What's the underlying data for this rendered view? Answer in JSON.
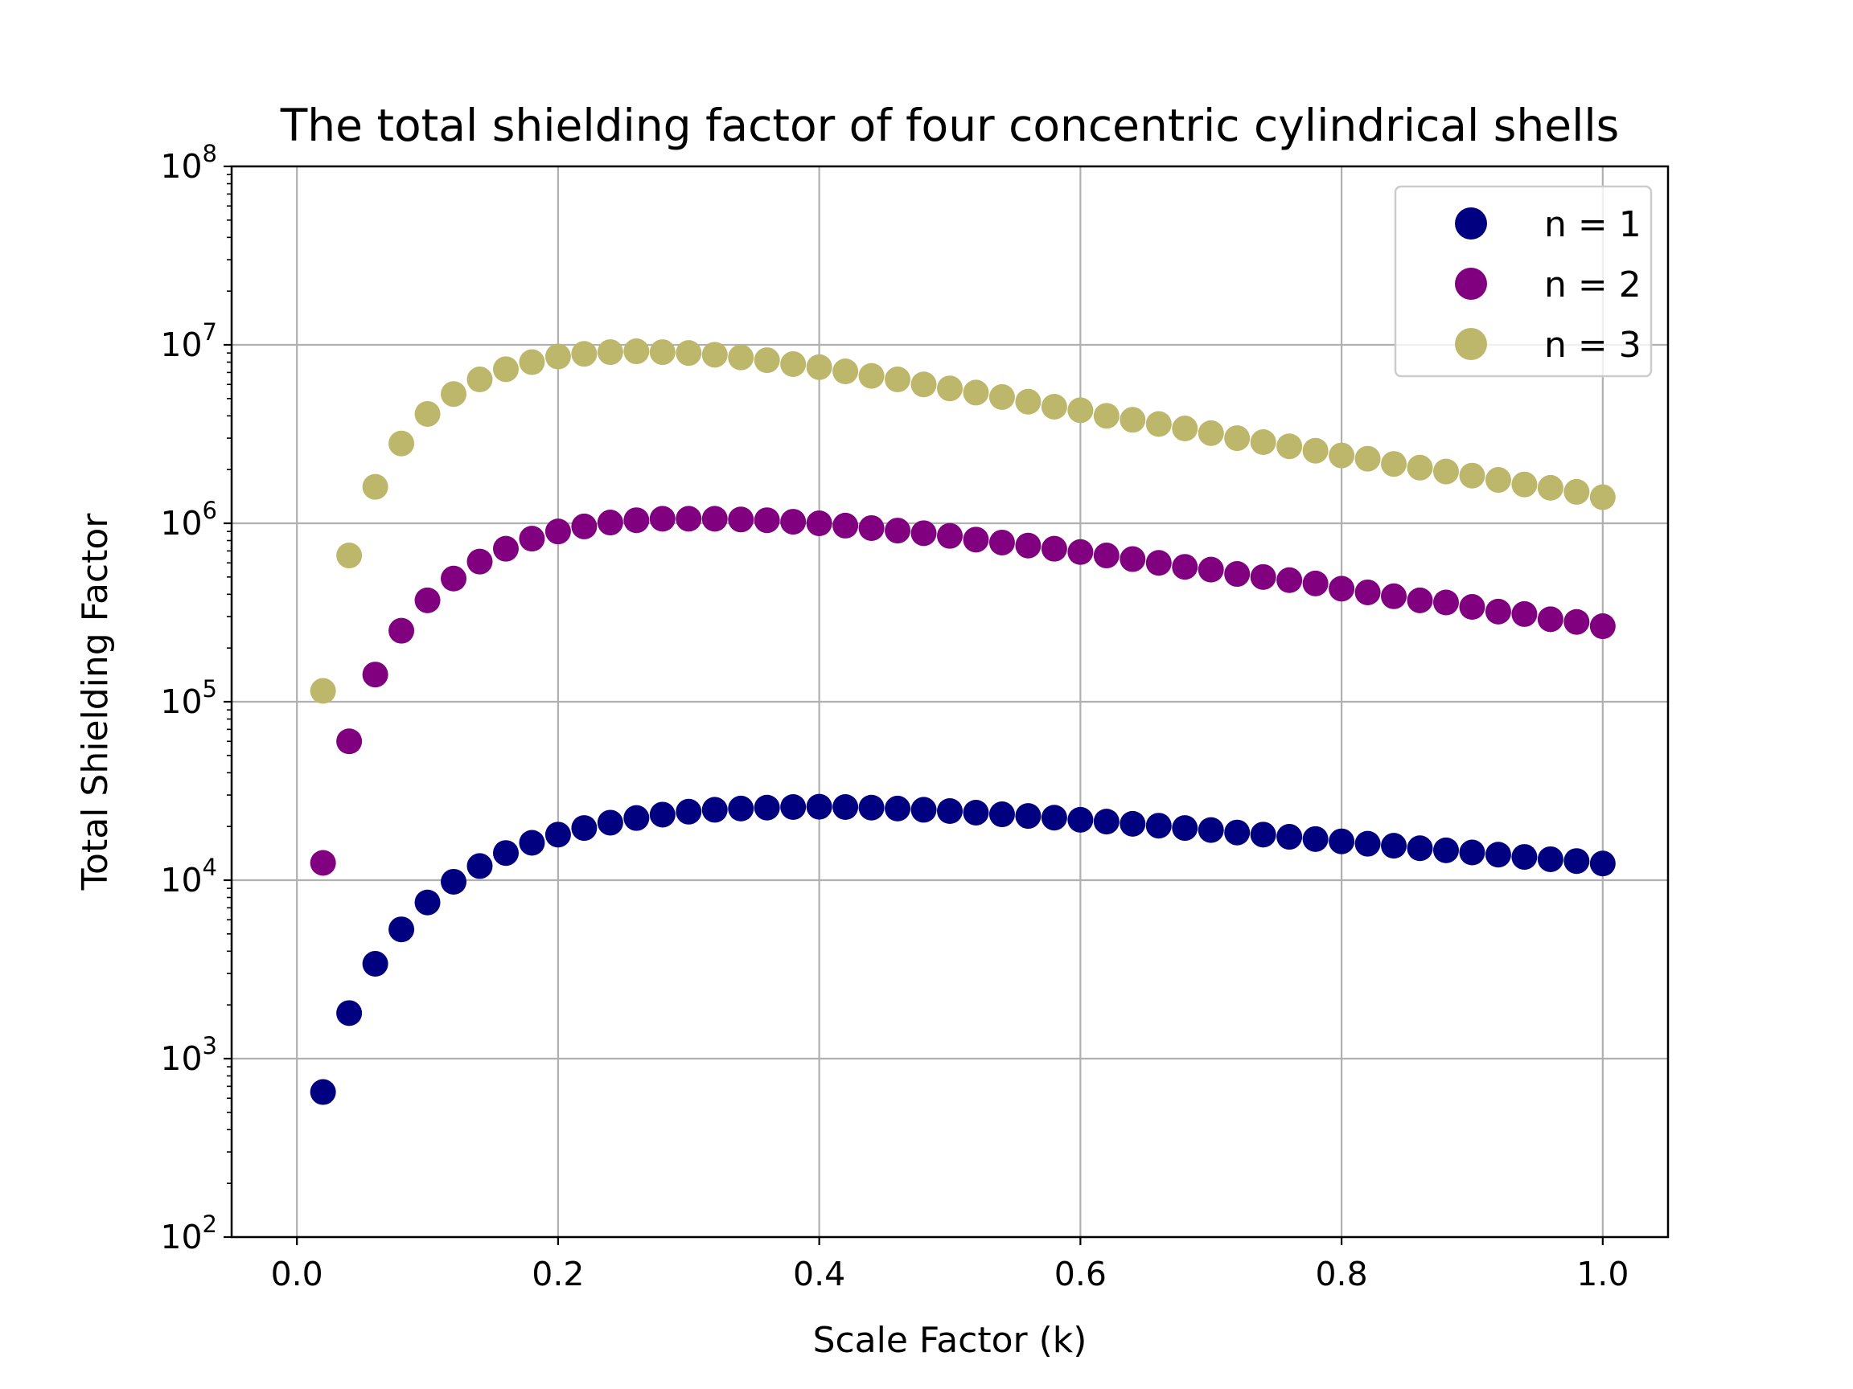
{
  "chart_data": {
    "type": "scatter",
    "title": "The total shielding factor of four concentric cylindrical shells",
    "xlabel": "Scale Factor (k)",
    "ylabel": "Total Shielding Factor",
    "xlim": [
      -0.05,
      1.05
    ],
    "ylim": [
      100,
      100000000
    ],
    "yscale": "log",
    "grid": true,
    "legend": "top-right",
    "x_ticks": [
      {
        "value": 0.0,
        "label": "0.0"
      },
      {
        "value": 0.2,
        "label": "0.2"
      },
      {
        "value": 0.4,
        "label": "0.4"
      },
      {
        "value": 0.6,
        "label": "0.6"
      },
      {
        "value": 0.8,
        "label": "0.8"
      },
      {
        "value": 1.0,
        "label": "1.0"
      }
    ],
    "y_ticks": [
      {
        "value": 100,
        "base": "10",
        "exp": "2"
      },
      {
        "value": 1000,
        "base": "10",
        "exp": "3"
      },
      {
        "value": 10000,
        "base": "10",
        "exp": "4"
      },
      {
        "value": 100000,
        "base": "10",
        "exp": "5"
      },
      {
        "value": 1000000,
        "base": "10",
        "exp": "6"
      },
      {
        "value": 10000000,
        "base": "10",
        "exp": "7"
      },
      {
        "value": 100000000,
        "base": "10",
        "exp": "8"
      }
    ],
    "x": [
      0.02,
      0.04,
      0.06,
      0.08,
      0.1,
      0.12,
      0.14,
      0.16,
      0.18,
      0.2,
      0.22,
      0.24,
      0.26,
      0.28,
      0.3,
      0.32,
      0.34,
      0.36,
      0.38,
      0.4,
      0.42,
      0.44,
      0.46,
      0.48,
      0.5,
      0.52,
      0.54,
      0.56,
      0.58,
      0.6,
      0.62,
      0.64,
      0.66,
      0.68,
      0.7,
      0.72,
      0.74,
      0.76,
      0.78,
      0.8,
      0.82,
      0.84,
      0.86,
      0.88,
      0.9,
      0.92,
      0.94,
      0.96,
      0.98,
      1.0
    ],
    "series": [
      {
        "name": "n = 1",
        "color": "#000080",
        "values": [
          650,
          1800,
          3400,
          5300,
          7500,
          9800,
          12000,
          14200,
          16200,
          18000,
          19600,
          21000,
          22300,
          23300,
          24200,
          24800,
          25200,
          25500,
          25700,
          25800,
          25700,
          25500,
          25200,
          24800,
          24400,
          23900,
          23400,
          22900,
          22400,
          21800,
          21300,
          20700,
          20200,
          19600,
          19100,
          18500,
          18000,
          17500,
          17000,
          16500,
          16000,
          15600,
          15100,
          14700,
          14300,
          13900,
          13500,
          13100,
          12800,
          12400
        ]
      },
      {
        "name": "n = 2",
        "color": "#800080",
        "values": [
          12500,
          60000,
          142000,
          250000,
          370000,
          490000,
          610000,
          720000,
          820000,
          900000,
          960000,
          1010000,
          1040000,
          1060000,
          1060000,
          1060000,
          1050000,
          1040000,
          1020000,
          1000000,
          970000,
          940000,
          910000,
          880000,
          850000,
          810000,
          780000,
          750000,
          720000,
          690000,
          660000,
          630000,
          600000,
          570000,
          550000,
          520000,
          500000,
          480000,
          460000,
          430000,
          410000,
          390000,
          370000,
          360000,
          340000,
          320000,
          310000,
          290000,
          280000,
          265000
        ]
      },
      {
        "name": "n = 3",
        "color": "#bdb76b",
        "values": [
          115000,
          660000,
          1600000,
          2800000,
          4100000,
          5300000,
          6400000,
          7300000,
          8000000,
          8600000,
          8900000,
          9100000,
          9200000,
          9100000,
          9000000,
          8800000,
          8500000,
          8200000,
          7800000,
          7500000,
          7100000,
          6700000,
          6400000,
          6000000,
          5700000,
          5400000,
          5100000,
          4800000,
          4500000,
          4300000,
          4000000,
          3800000,
          3600000,
          3400000,
          3200000,
          3000000,
          2850000,
          2700000,
          2550000,
          2400000,
          2300000,
          2150000,
          2050000,
          1950000,
          1850000,
          1750000,
          1650000,
          1580000,
          1500000,
          1400000
        ]
      }
    ]
  }
}
